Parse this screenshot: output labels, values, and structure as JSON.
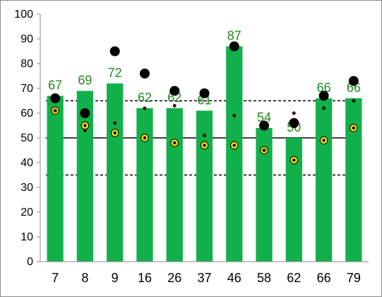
{
  "chart_data": {
    "type": "bar",
    "categories": [
      "7",
      "8",
      "9",
      "16",
      "26",
      "37",
      "46",
      "58",
      "62",
      "66",
      "79"
    ],
    "series": [
      {
        "values": [
          67,
          69,
          72,
          62,
          62,
          61,
          87,
          54,
          50,
          66,
          66
        ],
        "color": "#12b04a",
        "data_labels": true
      },
      {
        "type": "scatter",
        "marker": "large-black-dot",
        "values": [
          66,
          60,
          85,
          76,
          69,
          68,
          87,
          55,
          56,
          67,
          73
        ]
      },
      {
        "type": "scatter",
        "marker": "yellow-ring-dot",
        "values": [
          61,
          55,
          52,
          50,
          48,
          47,
          47,
          45,
          41,
          49,
          54
        ]
      },
      {
        "type": "scatter",
        "marker": "small-red-center-dot",
        "values": [
          61,
          53,
          56,
          62,
          63,
          51,
          59,
          45,
          60,
          62,
          65
        ]
      }
    ],
    "reference_lines": [
      {
        "y": 65,
        "style": "dashed"
      },
      {
        "y": 50,
        "style": "solid"
      },
      {
        "y": 35,
        "style": "dashed"
      }
    ],
    "ylim": [
      0,
      100
    ],
    "yticks": [
      "0",
      "10",
      "20",
      "30",
      "40",
      "50",
      "60",
      "70",
      "80",
      "90",
      "100"
    ],
    "grid": false,
    "legend": "none",
    "colors": {
      "bar": "#12b04a",
      "label": "#1f8a1f",
      "dot": "#000000",
      "ring": "#f5e11a"
    }
  }
}
